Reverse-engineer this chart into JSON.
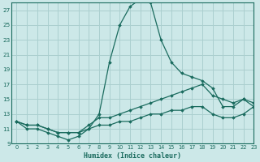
{
  "xlabel": "Humidex (Indice chaleur)",
  "ylabel": "",
  "bg_color": "#cce8e8",
  "line_color": "#1a6b5e",
  "grid_color": "#aacfcf",
  "xlim": [
    -0.5,
    23
  ],
  "ylim": [
    9,
    28
  ],
  "xticks": [
    0,
    1,
    2,
    3,
    4,
    5,
    6,
    7,
    8,
    9,
    10,
    11,
    12,
    13,
    14,
    15,
    16,
    17,
    18,
    19,
    20,
    21,
    22,
    23
  ],
  "yticks": [
    9,
    11,
    13,
    15,
    17,
    19,
    21,
    23,
    25,
    27
  ],
  "lines": [
    {
      "x": [
        0,
        1,
        2,
        3,
        4,
        5,
        6,
        7,
        8,
        9,
        10,
        11,
        12,
        13,
        14,
        15,
        16,
        17,
        18,
        19,
        20,
        21,
        22,
        23
      ],
      "y": [
        12,
        11,
        11,
        10.5,
        10,
        9.5,
        10,
        11,
        13,
        20,
        25,
        27.5,
        28.5,
        28,
        23,
        20,
        18.5,
        18,
        17.5,
        16.5,
        14,
        14,
        15,
        14
      ]
    },
    {
      "x": [
        0,
        1,
        2,
        3,
        4,
        5,
        6,
        7,
        8,
        9,
        10,
        11,
        12,
        13,
        14,
        15,
        16,
        17,
        18,
        19,
        20,
        21,
        22,
        23
      ],
      "y": [
        12,
        11.5,
        11.5,
        11,
        10.5,
        10.5,
        10.5,
        11.5,
        12.5,
        12.5,
        13,
        13.5,
        14,
        14.5,
        15,
        15.5,
        16,
        16.5,
        17,
        15.5,
        15,
        14.5,
        15,
        14.5
      ]
    },
    {
      "x": [
        0,
        1,
        2,
        3,
        4,
        5,
        6,
        7,
        8,
        9,
        10,
        11,
        12,
        13,
        14,
        15,
        16,
        17,
        18,
        19,
        20,
        21,
        22,
        23
      ],
      "y": [
        12,
        11.5,
        11.5,
        11,
        10.5,
        10.5,
        10.5,
        11,
        11.5,
        11.5,
        12,
        12,
        12.5,
        13,
        13,
        13.5,
        13.5,
        14,
        14,
        13,
        12.5,
        12.5,
        13,
        14
      ]
    }
  ]
}
